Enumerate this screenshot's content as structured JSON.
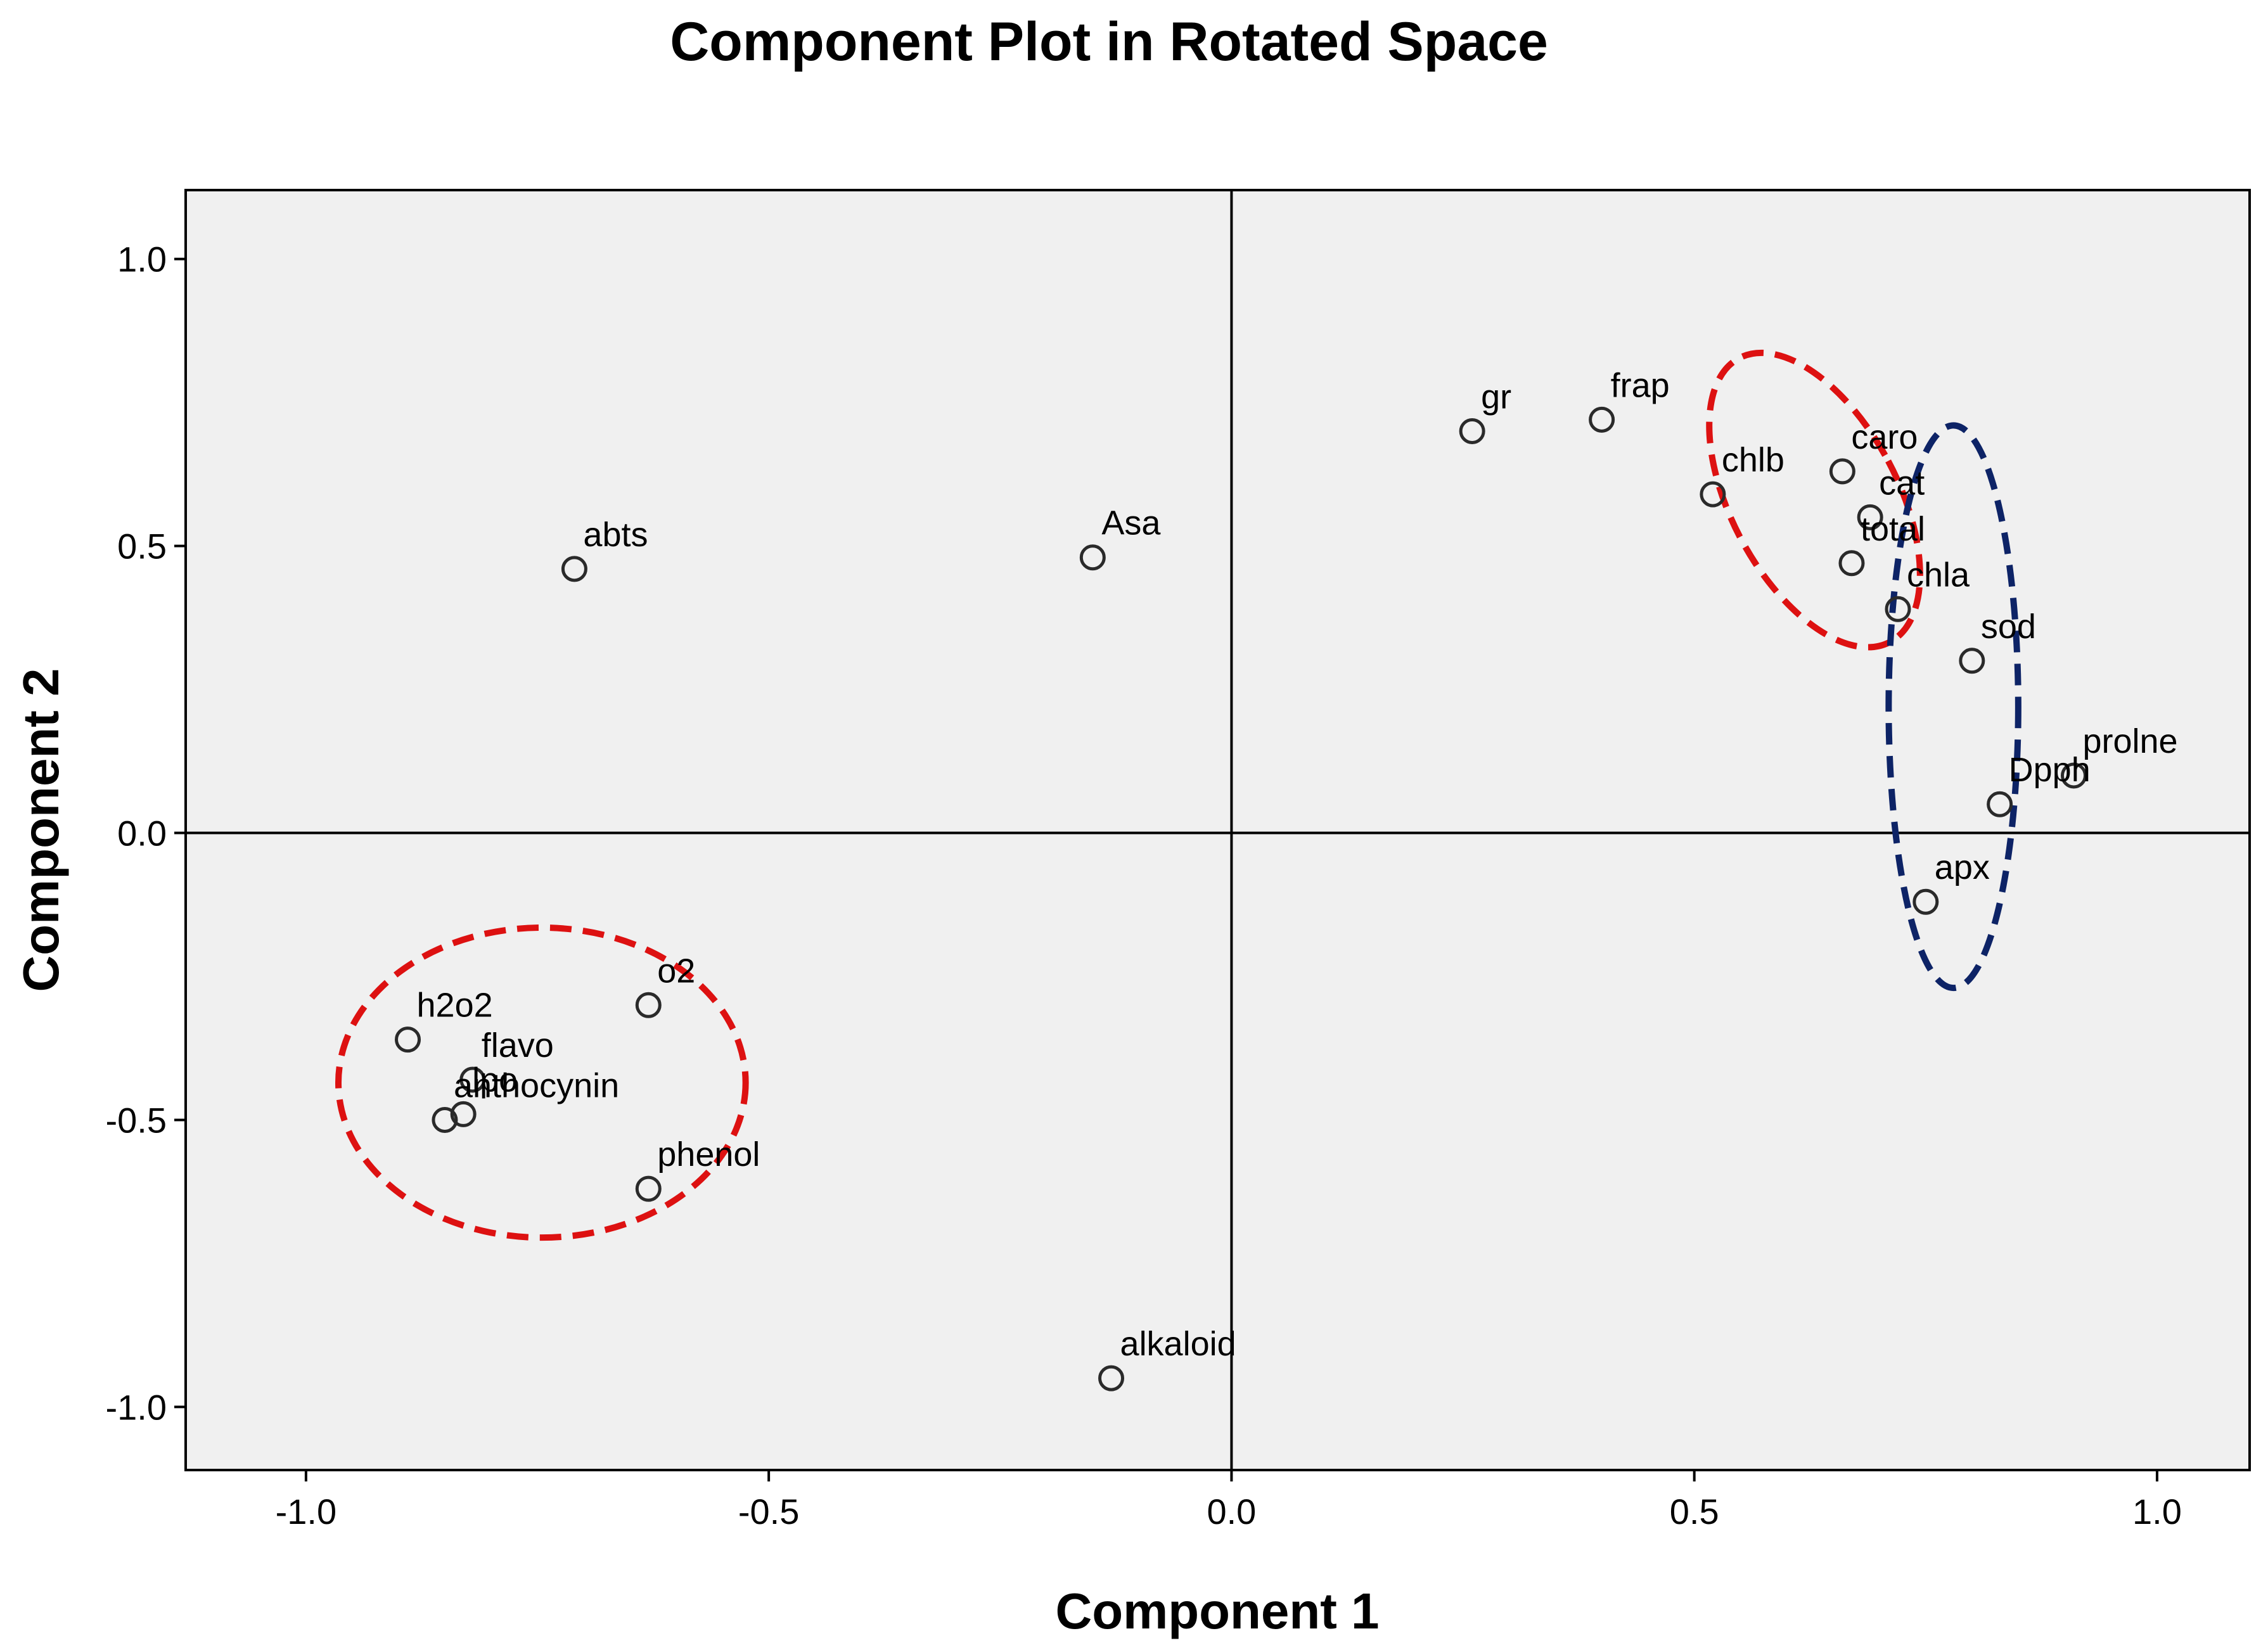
{
  "chart_data": {
    "type": "scatter",
    "title": "Component Plot in Rotated Space",
    "xlabel": "Component 1",
    "ylabel": "Component 2",
    "xlim": [
      -1.13,
      1.1
    ],
    "ylim": [
      -1.11,
      1.12
    ],
    "xticks": [
      -1.0,
      -0.5,
      0.0,
      0.5,
      1.0
    ],
    "yticks": [
      -1.0,
      -0.5,
      0.0,
      0.5,
      1.0
    ],
    "xtick_labels": [
      "-1.0",
      "-0.5",
      "0.0",
      "0.5",
      "1.0"
    ],
    "ytick_labels": [
      "-1.0",
      "-0.5",
      "0.0",
      "0.5",
      "1.0"
    ],
    "grid": false,
    "reference_lines": {
      "x": 0,
      "y": 0
    },
    "colors": {
      "plot_background": "#f0f0f0",
      "red_ellipse": "#dd1111",
      "blue_ellipse": "#0d2366",
      "marker": "#2a2a2a"
    },
    "points": [
      {
        "label": "abts",
        "x": -0.71,
        "y": 0.46
      },
      {
        "label": "Asa",
        "x": -0.15,
        "y": 0.48
      },
      {
        "label": "gr",
        "x": 0.26,
        "y": 0.7
      },
      {
        "label": "frap",
        "x": 0.4,
        "y": 0.72
      },
      {
        "label": "chlb",
        "x": 0.52,
        "y": 0.59
      },
      {
        "label": "caro",
        "x": 0.66,
        "y": 0.63
      },
      {
        "label": "cat",
        "x": 0.69,
        "y": 0.55
      },
      {
        "label": "total",
        "x": 0.67,
        "y": 0.47
      },
      {
        "label": "chla",
        "x": 0.72,
        "y": 0.39
      },
      {
        "label": "sod",
        "x": 0.8,
        "y": 0.3
      },
      {
        "label": "prolne",
        "x": 0.91,
        "y": 0.1
      },
      {
        "label": "Dpph",
        "x": 0.83,
        "y": 0.05
      },
      {
        "label": "apx",
        "x": 0.75,
        "y": -0.12
      },
      {
        "label": "o2",
        "x": -0.63,
        "y": -0.3
      },
      {
        "label": "h2o2",
        "x": -0.89,
        "y": -0.36
      },
      {
        "label": "flavo",
        "x": -0.82,
        "y": -0.43
      },
      {
        "label": "lpo",
        "x": -0.83,
        "y": -0.49
      },
      {
        "label": "anthocynin",
        "x": -0.85,
        "y": -0.5
      },
      {
        "label": "phenol",
        "x": -0.63,
        "y": -0.62
      },
      {
        "label": "alkaloid",
        "x": -0.13,
        "y": -0.95
      }
    ],
    "groupings": [
      {
        "color": "red",
        "center": [
          -0.745,
          -0.435
        ],
        "radii": [
          0.22,
          0.27
        ],
        "rotation_deg": 0
      },
      {
        "color": "red",
        "center": [
          0.63,
          0.58
        ],
        "radii": [
          0.09,
          0.28
        ],
        "rotation_deg": -28
      },
      {
        "color": "blue",
        "center": [
          0.78,
          0.22
        ],
        "radii": [
          0.07,
          0.49
        ],
        "rotation_deg": 0
      }
    ]
  }
}
